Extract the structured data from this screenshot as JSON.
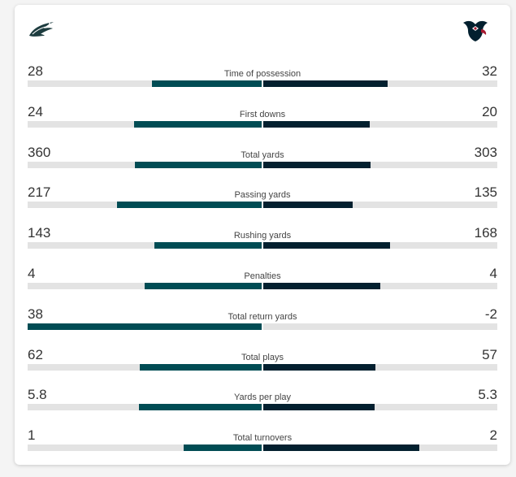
{
  "teams": {
    "left": {
      "name_icon": "eagles-logo-icon",
      "color": "#004c54"
    },
    "right": {
      "name_icon": "texans-logo-icon",
      "color": "#03202f"
    }
  },
  "colors": {
    "track": "#e3e3e3",
    "left_fill": "#004c54",
    "right_fill": "#03202f"
  },
  "stats": [
    {
      "label": "Time of possession",
      "left": "28",
      "right": "32",
      "left_share": 0.47,
      "right_share": 0.53
    },
    {
      "label": "First downs",
      "left": "24",
      "right": "20",
      "left_share": 0.545,
      "right_share": 0.455
    },
    {
      "label": "Total yards",
      "left": "360",
      "right": "303",
      "left_share": 0.543,
      "right_share": 0.457
    },
    {
      "label": "Passing yards",
      "left": "217",
      "right": "135",
      "left_share": 0.617,
      "right_share": 0.383
    },
    {
      "label": "Rushing yards",
      "left": "143",
      "right": "168",
      "left_share": 0.46,
      "right_share": 0.54
    },
    {
      "label": "Penalties",
      "left": "4",
      "right": "4",
      "left_share": 0.5,
      "right_share": 0.5
    },
    {
      "label": "Total return yards",
      "left": "38",
      "right": "-2",
      "left_share": 1.0,
      "right_share": 0.0
    },
    {
      "label": "Total plays",
      "left": "62",
      "right": "57",
      "left_share": 0.521,
      "right_share": 0.479
    },
    {
      "label": "Yards per play",
      "left": "5.8",
      "right": "5.3",
      "left_share": 0.523,
      "right_share": 0.477
    },
    {
      "label": "Total turnovers",
      "left": "1",
      "right": "2",
      "left_share": 0.333,
      "right_share": 0.667
    }
  ]
}
